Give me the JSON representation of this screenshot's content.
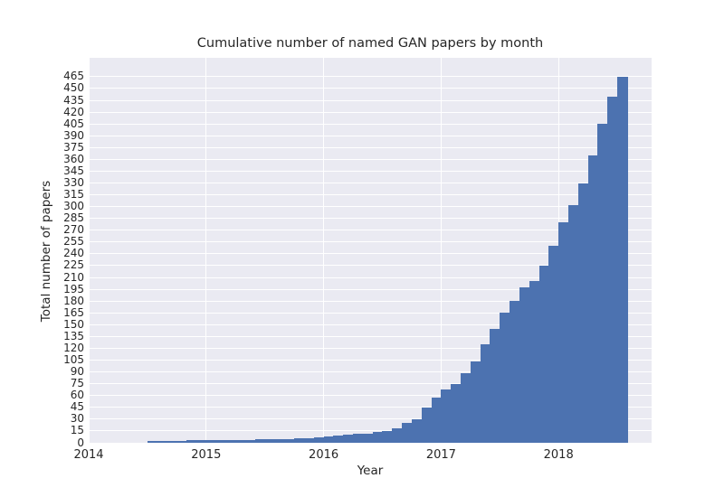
{
  "chart_data": {
    "type": "bar",
    "title": "Cumulative number of named GAN papers by month",
    "xlabel": "Year",
    "ylabel": "Total number of papers",
    "x_tick_labels": [
      "2014",
      "2015",
      "2016",
      "2017",
      "2018"
    ],
    "x_tick_years": [
      2014,
      2015,
      2016,
      2017,
      2018
    ],
    "y_ticks": [
      0,
      15,
      30,
      45,
      60,
      75,
      90,
      105,
      120,
      135,
      150,
      165,
      180,
      195,
      210,
      225,
      240,
      255,
      270,
      285,
      300,
      315,
      330,
      345,
      360,
      375,
      390,
      405,
      420,
      435,
      450,
      465
    ],
    "xlim": [
      2014.0,
      2018.792
    ],
    "ylim": [
      0,
      489
    ],
    "grid": true,
    "legend_position": "none",
    "colors": {
      "bar": "#4c72b0",
      "plot_background": "#eaeaf2",
      "gridline": "#ffffff",
      "text": "#262626",
      "figure_background": "#ffffff"
    },
    "months": [
      "2014-07",
      "2014-08",
      "2014-09",
      "2014-10",
      "2014-11",
      "2014-12",
      "2015-01",
      "2015-02",
      "2015-03",
      "2015-04",
      "2015-05",
      "2015-06",
      "2015-07",
      "2015-08",
      "2015-09",
      "2015-10",
      "2015-11",
      "2015-12",
      "2016-01",
      "2016-02",
      "2016-03",
      "2016-04",
      "2016-05",
      "2016-06",
      "2016-07",
      "2016-08",
      "2016-09",
      "2016-10",
      "2016-11",
      "2016-12",
      "2017-01",
      "2017-02",
      "2017-03",
      "2017-04",
      "2017-05",
      "2017-06",
      "2017-07",
      "2017-08",
      "2017-09",
      "2017-10",
      "2017-11",
      "2017-12",
      "2018-01",
      "2018-02",
      "2018-03",
      "2018-04",
      "2018-05",
      "2018-06",
      "2018-07"
    ],
    "values": [
      2,
      2,
      2,
      2,
      3,
      3,
      3,
      3,
      3,
      4,
      4,
      5,
      5,
      5,
      5,
      6,
      6,
      7,
      8,
      9,
      10,
      11,
      12,
      14,
      15,
      18,
      25,
      30,
      45,
      57,
      68,
      75,
      88,
      103,
      125,
      145,
      165,
      180,
      198,
      206,
      225,
      250,
      280,
      302,
      330,
      365,
      405,
      440,
      465
    ]
  }
}
